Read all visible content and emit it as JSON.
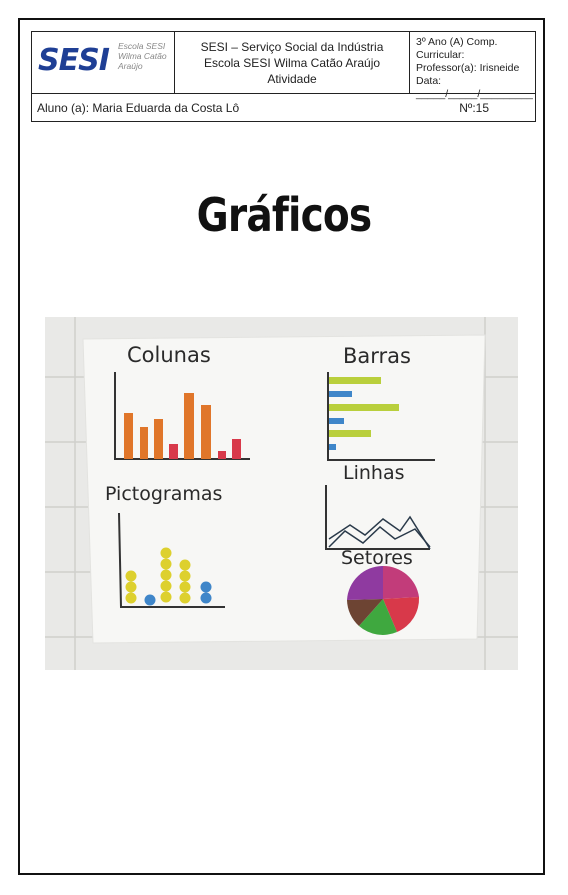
{
  "header": {
    "logo_text": "SESI",
    "logo_subtitle": [
      "Escola SESI",
      "Wilma Catão",
      "Araújo"
    ],
    "institution": [
      "SESI – Serviço Social da Indústria",
      "Escola SESI Wilma Catão Araújo",
      "Atividade"
    ],
    "class_info": "3º Ano (A) Comp. Curricular:",
    "teacher": "Professor(a):  Irisneide",
    "date_label": "Data:",
    "date_blank": "_____/_____/_________",
    "student": "Aluno (a): Maria Eduarda da Costa Lô",
    "number": "Nº:15"
  },
  "title": "Gráficos",
  "poster": {
    "labels": {
      "colunas": "Colunas",
      "barras": "Barras",
      "linhas": "Linhas",
      "pictogramas": "Pictogramas",
      "setores": "Setores"
    },
    "colors": {
      "orange": "#e0762a",
      "red": "#d8394a",
      "lime": "#b9cf3c",
      "blue": "#3f86c9",
      "yellow": "#ddd02e",
      "purple": "#8f3aa0",
      "magenta": "#c23c7a",
      "brown": "#6d4433",
      "green": "#3fa83f",
      "lines": "#2a3a4a"
    }
  }
}
